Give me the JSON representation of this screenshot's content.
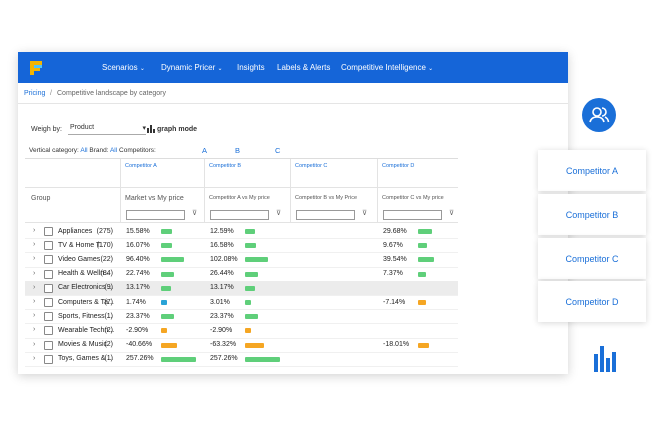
{
  "nav": {
    "items": [
      "Scenarios",
      "Dynamic Pricer",
      "Insights",
      "Labels & Alerts",
      "Competitive Intelligence"
    ]
  },
  "breadcrumb": {
    "root": "Pricing",
    "separator": "/",
    "current": "Competitive landscape by category"
  },
  "controls": {
    "weigh_label": "Weigh by:",
    "weigh_value": "Product",
    "graph_mode": "graph mode",
    "vertical_label": "Vertical category:",
    "vertical_value": "All",
    "brand_label": "Brand:",
    "brand_value": "All",
    "competitors_label": "Competitors:",
    "competitors": [
      "A",
      "B",
      "C"
    ]
  },
  "table": {
    "group_header": "Group",
    "competitor_headers": [
      "Competitor A",
      "Competitor B",
      "Competitor C",
      "Competitor D"
    ],
    "columns": [
      "Market vs My price",
      "Competitor A vs My price",
      "Competitor B vs My Price",
      "Competitor C vs My price"
    ],
    "rows": [
      {
        "name": "Appliances",
        "count": "(275)",
        "cells": [
          "15.58%",
          "12.59%",
          "",
          "29.68%"
        ]
      },
      {
        "name": "TV & Home T...",
        "count": "(170)",
        "cells": [
          "16.07%",
          "16.58%",
          "",
          "9.67%"
        ]
      },
      {
        "name": "Video Games",
        "count": "(22)",
        "cells": [
          "96.40%",
          "102.08%",
          "",
          "39.54%"
        ]
      },
      {
        "name": "Health & Welln...",
        "count": "(84)",
        "cells": [
          "22.74%",
          "26.44%",
          "",
          "7.37%"
        ]
      },
      {
        "name": "Car Electronics ...",
        "count": "(9)",
        "cells": [
          "13.17%",
          "13.17%",
          "",
          ""
        ]
      },
      {
        "name": "Computers & Ta...",
        "count": "(7)",
        "cells": [
          "1.74%",
          "3.01%",
          "",
          "-7.14%"
        ]
      },
      {
        "name": "Sports, Fitness ...",
        "count": "(1)",
        "cells": [
          "23.37%",
          "23.37%",
          "",
          ""
        ]
      },
      {
        "name": "Wearable Techn...",
        "count": "(2)",
        "cells": [
          "-2.90%",
          "-2.90%",
          "",
          ""
        ]
      },
      {
        "name": "Movies & Music",
        "count": "(2)",
        "cells": [
          "-40.66%",
          "-63.32%",
          "",
          "-18.01%"
        ]
      },
      {
        "name": "Toys, Games & ...",
        "count": "(1)",
        "cells": [
          "257.26%",
          "257.26%",
          "",
          ""
        ]
      }
    ]
  },
  "side_cards": [
    "Competitor A",
    "Competitor B",
    "Competitor C",
    "Competitor D"
  ]
}
